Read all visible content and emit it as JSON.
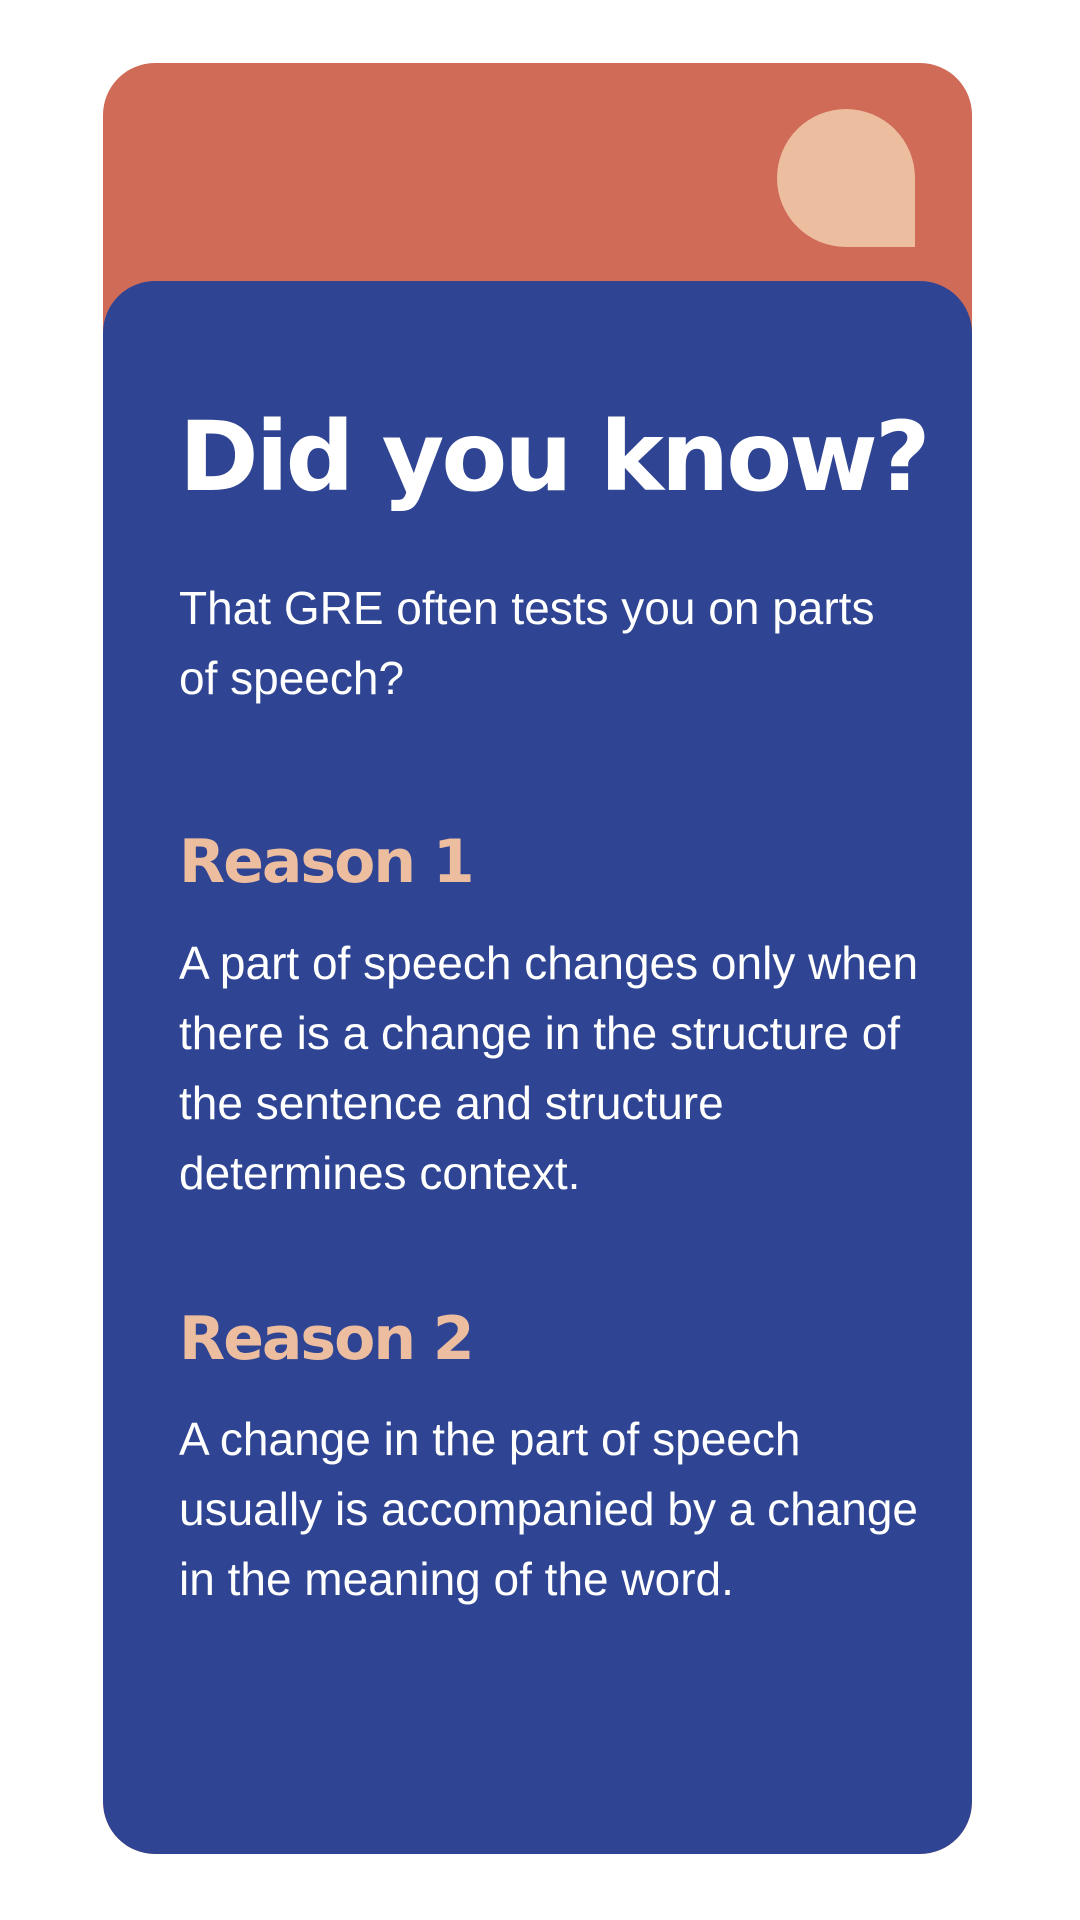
{
  "card": {
    "title": "Did you know?",
    "subtitle": "That GRE often tests you on parts of speech?",
    "reasons": [
      {
        "heading": "Reason 1",
        "body": "A part of speech changes only when there is a change in the structure of the sentence and structure determines context."
      },
      {
        "heading": "Reason 2",
        "body": "A change in the part of speech usually is accompanied by a change in the meaning of the word."
      }
    ]
  },
  "colors": {
    "background": "#ffffff",
    "card_top": "#d06b58",
    "accent_shape": "#ecbd9f",
    "panel": "#2f4593",
    "heading_accent": "#ecbd9f",
    "text": "#ffffff"
  }
}
